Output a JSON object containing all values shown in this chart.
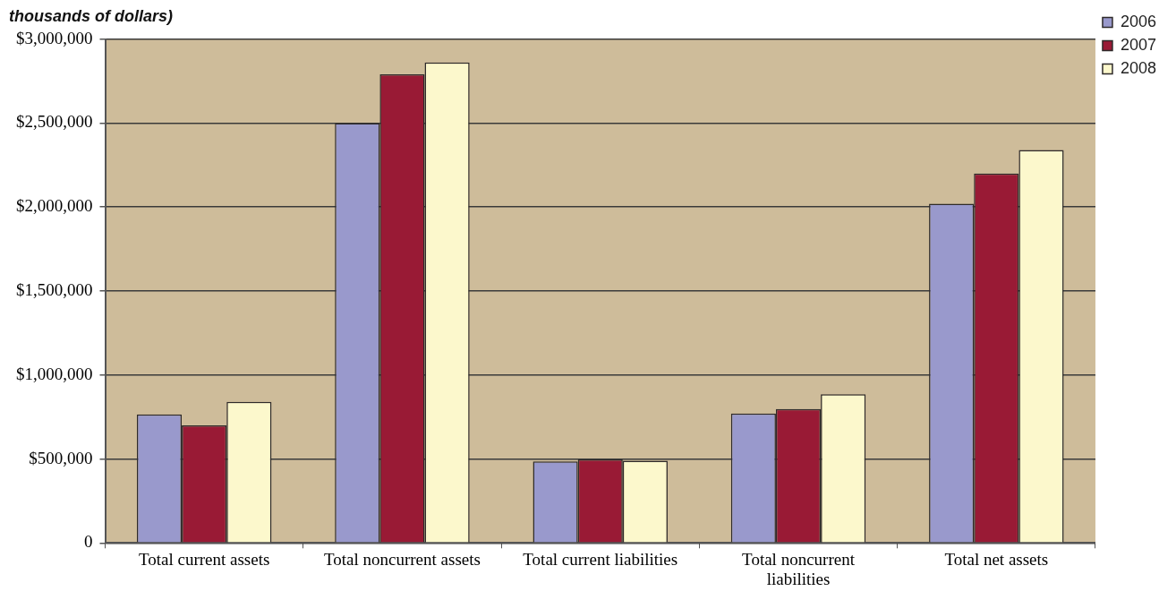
{
  "chart_data": {
    "type": "bar",
    "title": "thousands of dollars)",
    "categories": [
      "Total current assets",
      "Total noncurrent assets",
      "Total current liabilities",
      "Total noncurrent liabilities",
      "Total net assets"
    ],
    "series": [
      {
        "name": "2006",
        "color": "#9999cc",
        "values": [
          765000,
          2500000,
          485000,
          770000,
          2020000
        ]
      },
      {
        "name": "2007",
        "color": "#991a35",
        "values": [
          700000,
          2790000,
          497000,
          797000,
          2200000
        ]
      },
      {
        "name": "2008",
        "color": "#fcf8cc",
        "values": [
          840000,
          2860000,
          490000,
          885000,
          2340000
        ]
      }
    ],
    "ylim": [
      0,
      3000000
    ],
    "yticks": [
      0,
      {
        "value": 500000,
        "label": "$500,000"
      },
      {
        "value": 1000000,
        "label": "$1,000,000"
      },
      {
        "value": 1500000,
        "label": "$1,500,000"
      },
      {
        "value": 2000000,
        "label": "$2,000,000"
      },
      {
        "value": 2500000,
        "label": "$2,500,000"
      },
      {
        "value": 3000000,
        "label": "$3,000,000"
      }
    ],
    "grid": "y",
    "legend": "top right"
  }
}
